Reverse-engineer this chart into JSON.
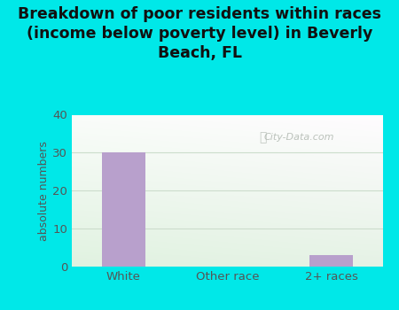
{
  "categories": [
    "White",
    "Other race",
    "2+ races"
  ],
  "values": [
    30,
    0,
    3
  ],
  "bar_color": "#b8a0cc",
  "title": "Breakdown of poor residents within races\n(income below poverty level) in Beverly\nBeach, FL",
  "ylabel": "absolute numbers",
  "ylim": [
    0,
    40
  ],
  "yticks": [
    0,
    10,
    20,
    30,
    40
  ],
  "bg_color": "#00e8e8",
  "plot_bg_color_topleft": "#e8f5e8",
  "plot_bg_color_topright": "#f5faf5",
  "plot_bg_color_bottom": "#d8f0e8",
  "watermark": "City-Data.com",
  "title_fontsize": 12.5,
  "ylabel_fontsize": 9,
  "tick_fontsize": 9.5,
  "title_color": "#111111",
  "axis_color": "#555555",
  "grid_color": "#ccddcc",
  "bar_width": 0.42
}
